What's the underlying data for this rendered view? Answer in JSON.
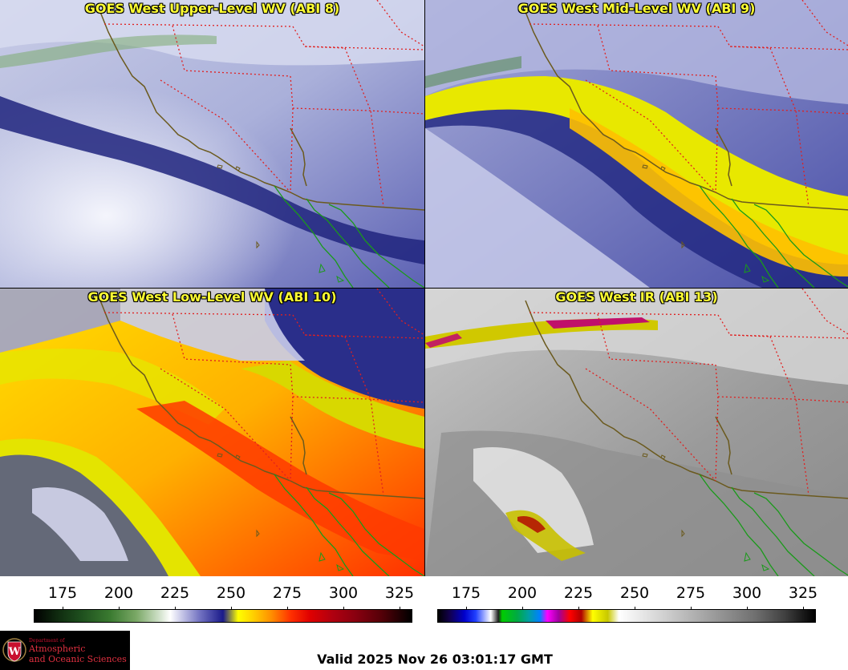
{
  "panels": [
    {
      "id": "upper",
      "title": "GOES West Upper-Level WV (ABI 8)"
    },
    {
      "id": "mid",
      "title": "GOES West Mid-Level WV (ABI 9)"
    },
    {
      "id": "low",
      "title": "GOES West Low-Level WV (ABI 10)"
    },
    {
      "id": "ir",
      "title": "GOES West IR (ABI 13)"
    }
  ],
  "colorbars": {
    "wv": {
      "ticks": [
        "175",
        "200",
        "225",
        "250",
        "275",
        "300",
        "325"
      ]
    },
    "ir": {
      "ticks": [
        "175",
        "200",
        "225",
        "250",
        "275",
        "300",
        "325"
      ]
    }
  },
  "logo": {
    "department": "Department of",
    "name_line1": "Atmospheric",
    "name_line2": "and Oceanic Sciences",
    "seal_letter": "W"
  },
  "footer": {
    "valid": "Valid 2025 Nov 26 03:01:17 GMT"
  },
  "colors": {
    "title_text": "#ffff33",
    "coastline": "#6b5a1e",
    "state_border": "#e02020",
    "mexico_coast": "#1a9a1a"
  }
}
